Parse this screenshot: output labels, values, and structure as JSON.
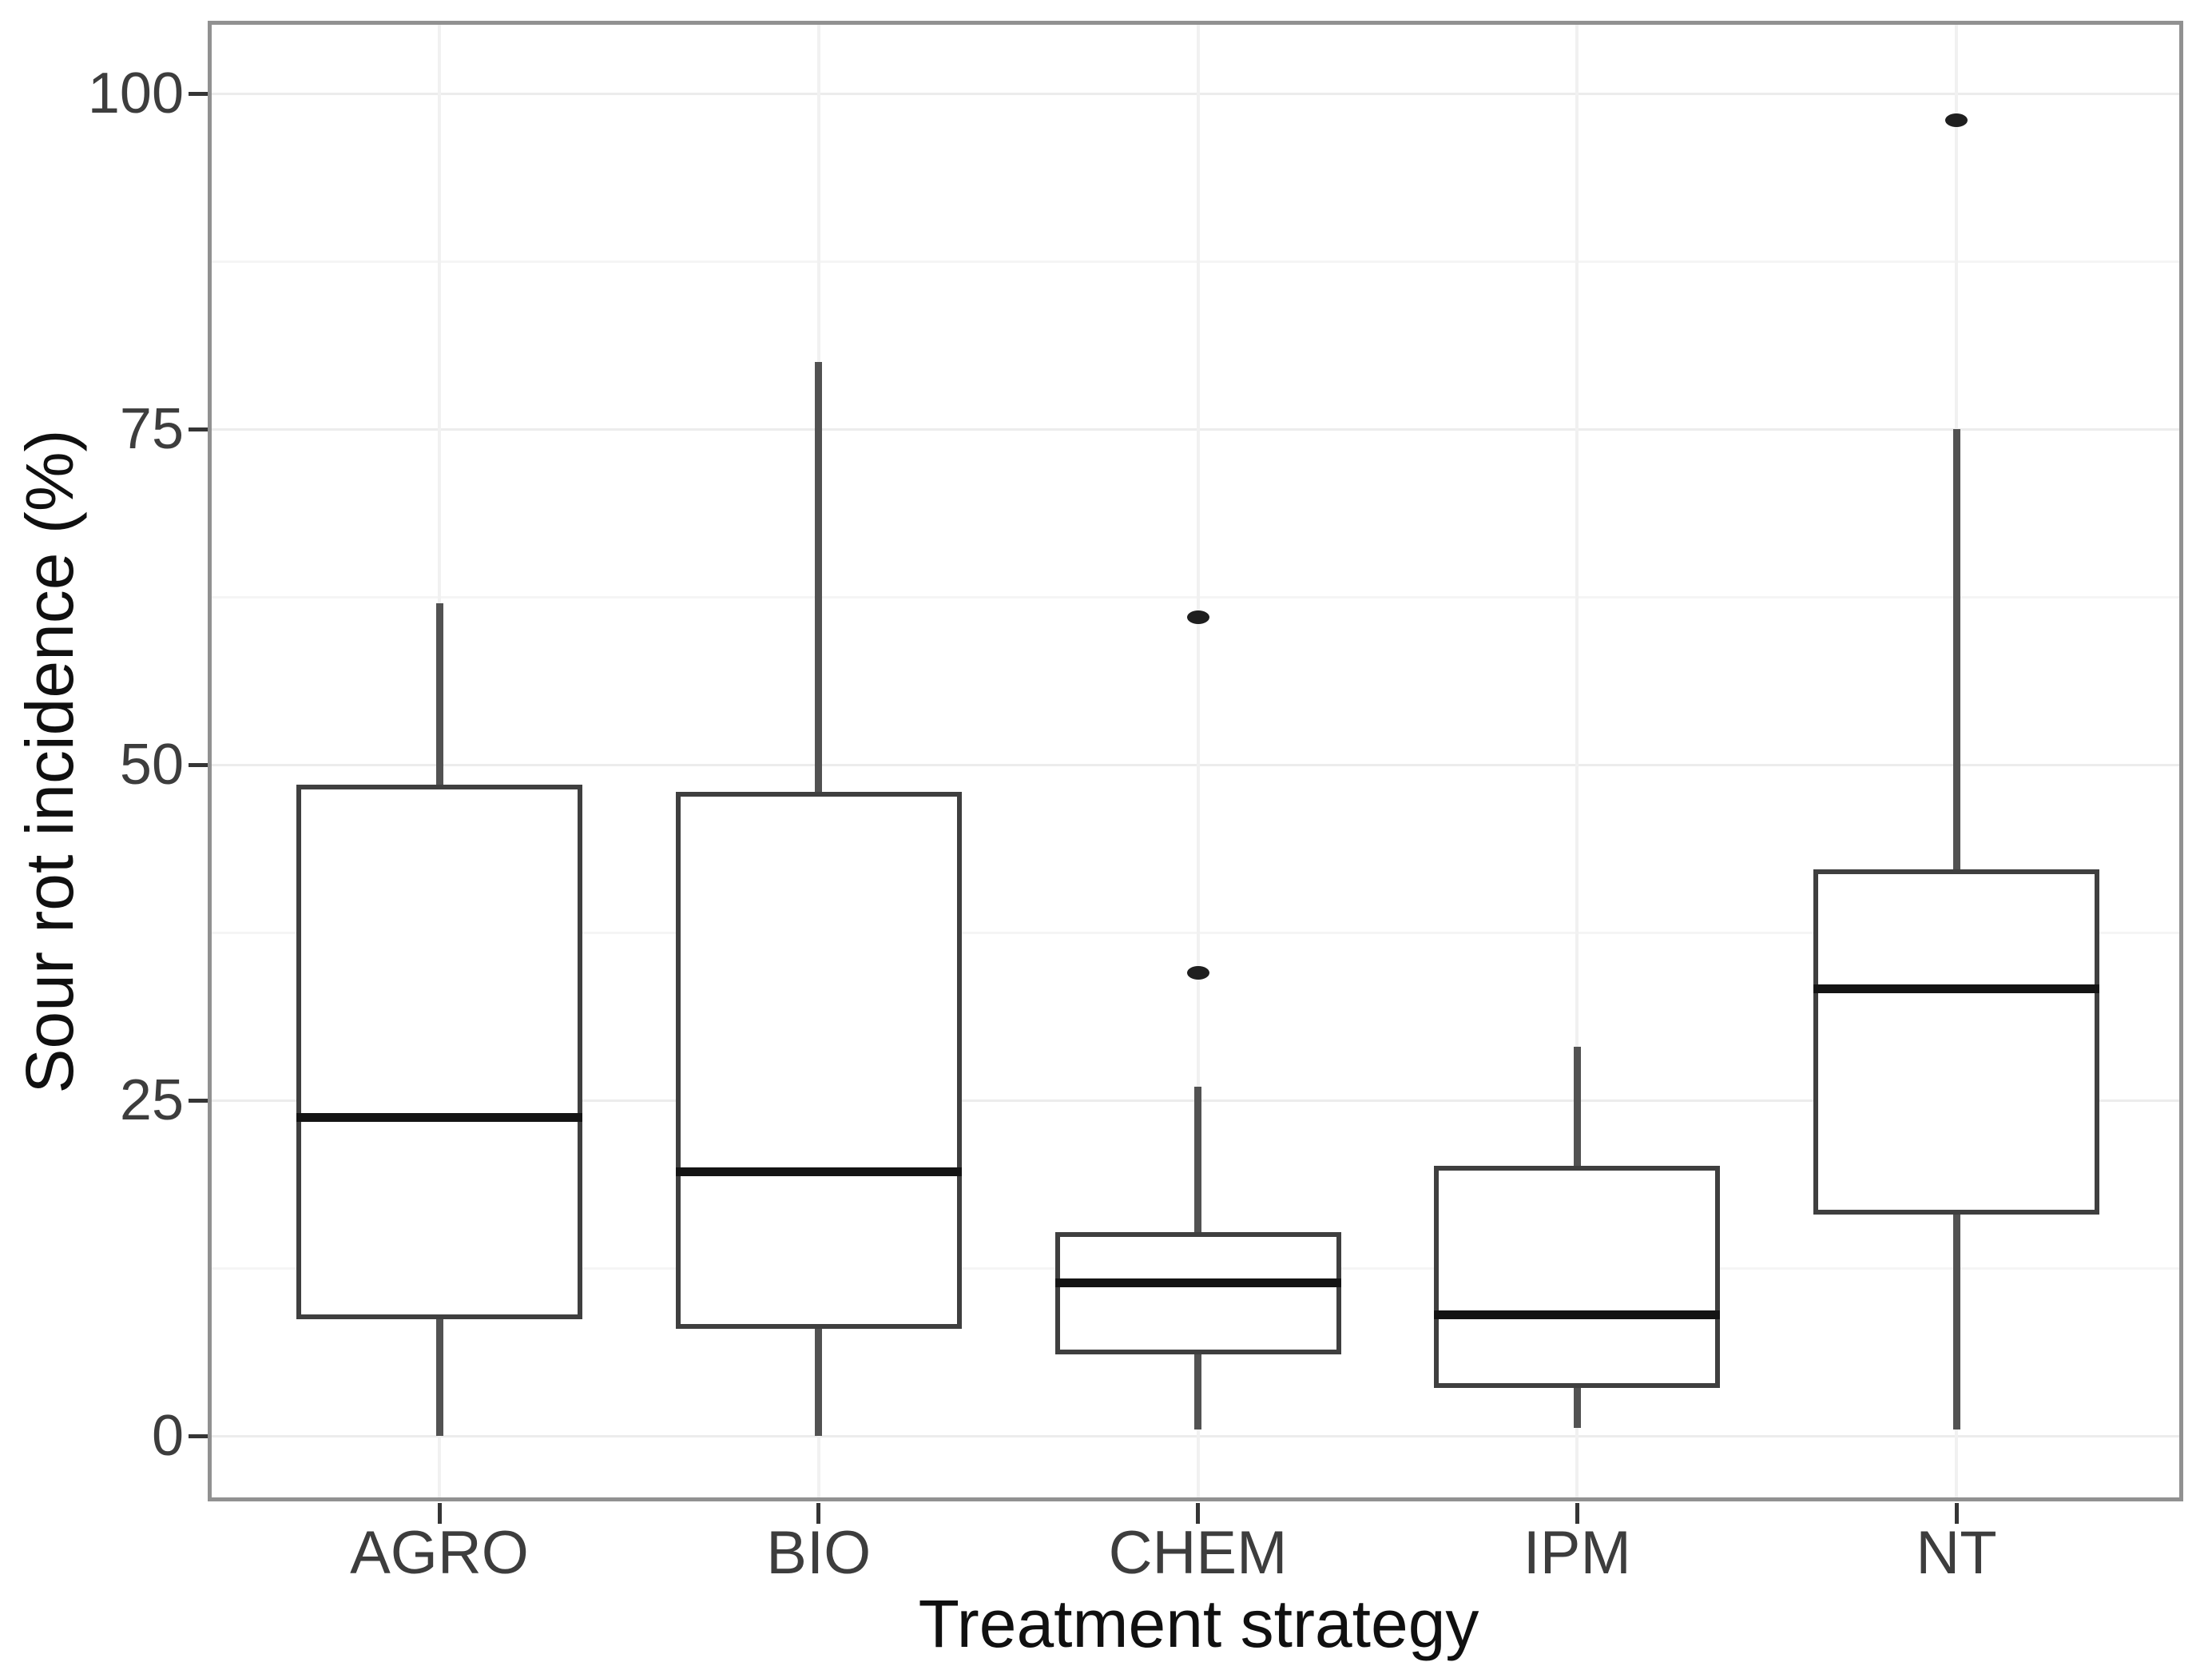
{
  "figure": {
    "y_axis_title": "Sour rot incidence (%)",
    "x_axis_title": "Treatment strategy"
  },
  "chart_data": {
    "type": "boxplot",
    "title": "",
    "xlabel": "Treatment strategy",
    "ylabel": "Sour rot incidence (%)",
    "ylim": [
      -4.5,
      104
    ],
    "y_major_ticks": [
      0,
      25,
      50,
      75,
      100
    ],
    "y_tick_labels": [
      "0",
      "25",
      "50",
      "75",
      "100"
    ],
    "y_minor_gridlines": [
      12.5,
      37.5,
      62.5,
      87.5
    ],
    "grid": true,
    "legend": "none",
    "categories": [
      "AGRO",
      "BIO",
      "CHEM",
      "IPM",
      "NT"
    ],
    "series": [
      {
        "category": "AGRO",
        "whisker_low": 0,
        "q1": 8.7,
        "median": 23.7,
        "q3": 48.5,
        "whisker_high": 62,
        "outliers": []
      },
      {
        "category": "BIO",
        "whisker_low": 0,
        "q1": 8.0,
        "median": 19.7,
        "q3": 48.0,
        "whisker_high": 80,
        "outliers": []
      },
      {
        "category": "CHEM",
        "whisker_low": 0.5,
        "q1": 6.1,
        "median": 11.4,
        "q3": 15.2,
        "whisker_high": 26,
        "outliers": [
          61,
          34.5
        ]
      },
      {
        "category": "IPM",
        "whisker_low": 0.6,
        "q1": 3.6,
        "median": 9.0,
        "q3": 20.1,
        "whisker_high": 29,
        "outliers": []
      },
      {
        "category": "NT",
        "whisker_low": 0.5,
        "q1": 16.5,
        "median": 33.3,
        "q3": 42.2,
        "whisker_high": 75,
        "outliers": [
          98
        ]
      }
    ],
    "colors": {
      "box_border": "#3f3f3f",
      "median": "#141414",
      "whisker": "#525252",
      "outlier": "#1f1f1f",
      "panel_border": "#919191",
      "grid_major": "#ececec",
      "grid_minor": "#f5f5f5",
      "grid_vertical": "#f1f1f1",
      "tick_text": "#3d3d3d",
      "title_text": "#101010",
      "background": "#ffffff"
    }
  }
}
